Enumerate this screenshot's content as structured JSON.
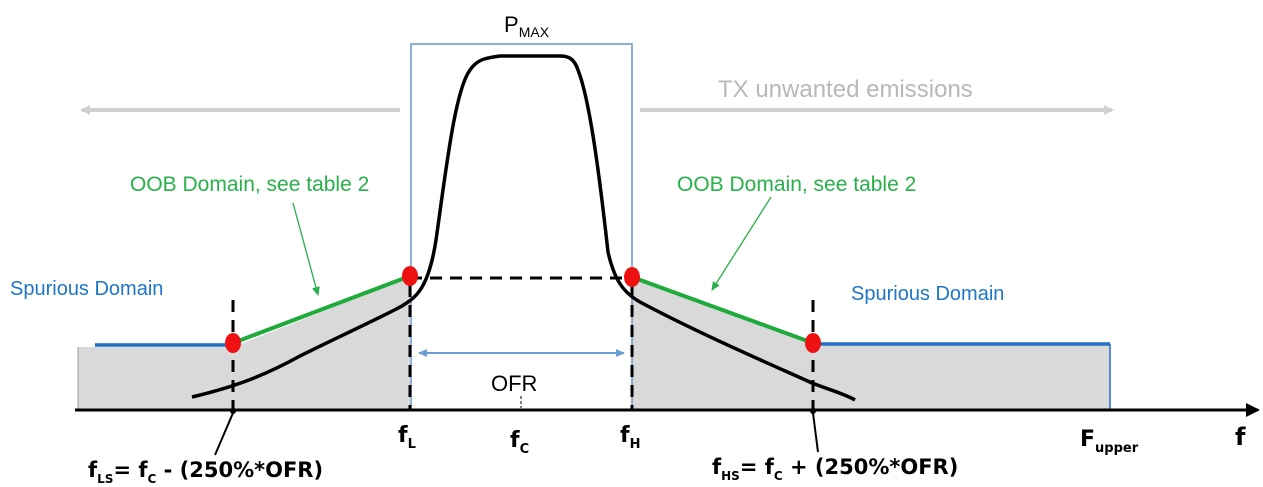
{
  "labels": {
    "pmax_main": "P",
    "pmax_sub": "MAX",
    "tx_unwanted": "TX unwanted emissions",
    "oob_left": "OOB Domain, see table 2",
    "oob_right": "OOB Domain, see table 2",
    "spurious_left": "Spurious Domain",
    "spurious_right": "Spurious Domain",
    "ofr": "OFR",
    "f_axis": "f"
  },
  "ticks": {
    "fl_main": "f",
    "fl_sub": "L",
    "fc_main": "f",
    "fc_sub": "C",
    "fh_main": "f",
    "fh_sub": "H",
    "fupper_main": "F",
    "fupper_sub": "upper"
  },
  "formulas": {
    "fls_f": "f",
    "fls_sub": "LS",
    "fls_eq": "= f",
    "fls_c": "C",
    "fls_rest": " - (250%*OFR)",
    "fhs_f": "f",
    "fhs_sub": "HS",
    "fhs_eq": "= f",
    "fhs_c": "C",
    "fhs_rest": " + (250%*OFR)"
  },
  "colors": {
    "axis": "#000000",
    "oob_line": "#1faa3c",
    "spurious_line": "#1f6fc4",
    "label_blue": "#1f75c8",
    "label_green": "#28b04a",
    "arrow_grey": "#d0d0d0",
    "fill_grey": "#d9d9d9",
    "ofr_arrow": "#6a9fd6",
    "marker": "#ee1111"
  }
}
